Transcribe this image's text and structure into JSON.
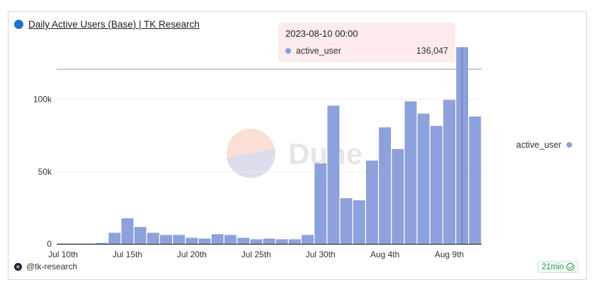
{
  "header": {
    "title": "Daily Active Users (Base) | TK Research",
    "icon": "dune-circle-icon"
  },
  "tooltip": {
    "date": "2023-08-10 00:00",
    "series": "active_user",
    "value": "136,047"
  },
  "watermark": {
    "text": "Dune"
  },
  "footer": {
    "author": "@tk-research",
    "refresh": "21min"
  },
  "colors": {
    "bar": "#8da2dc",
    "bar_edge": "#7387c6",
    "accent": "#1a73c8"
  },
  "chart_data": {
    "type": "bar",
    "title": "Daily Active Users (Base) | TK Research",
    "xlabel": "",
    "ylabel": "",
    "ylim": [
      0,
      136047
    ],
    "yticks": [
      0,
      50000,
      100000
    ],
    "ytick_labels": [
      "0",
      "50k",
      "100k"
    ],
    "xtick_labels": [
      "Jul 10th",
      "Jul 15th",
      "Jul 20th",
      "Jul 25th",
      "Jul 30th",
      "Aug 4th",
      "Aug 9th"
    ],
    "grid": true,
    "legend": "right",
    "series": [
      {
        "name": "active_user",
        "x": [
          "2023-07-10",
          "2023-07-11",
          "2023-07-12",
          "2023-07-13",
          "2023-07-14",
          "2023-07-15",
          "2023-07-16",
          "2023-07-17",
          "2023-07-18",
          "2023-07-19",
          "2023-07-20",
          "2023-07-21",
          "2023-07-22",
          "2023-07-23",
          "2023-07-24",
          "2023-07-25",
          "2023-07-26",
          "2023-07-27",
          "2023-07-28",
          "2023-07-29",
          "2023-07-30",
          "2023-07-31",
          "2023-08-01",
          "2023-08-02",
          "2023-08-03",
          "2023-08-04",
          "2023-08-05",
          "2023-08-06",
          "2023-08-07",
          "2023-08-08",
          "2023-08-09",
          "2023-08-10",
          "2023-08-11"
        ],
        "values": [
          100,
          100,
          100,
          500,
          7500,
          17500,
          11500,
          7500,
          6000,
          6000,
          4000,
          3500,
          6500,
          6000,
          4000,
          3000,
          3500,
          3000,
          3000,
          6000,
          55500,
          95500,
          31500,
          30000,
          57500,
          80500,
          65500,
          98500,
          90000,
          81500,
          99500,
          136047,
          88000
        ]
      }
    ]
  }
}
